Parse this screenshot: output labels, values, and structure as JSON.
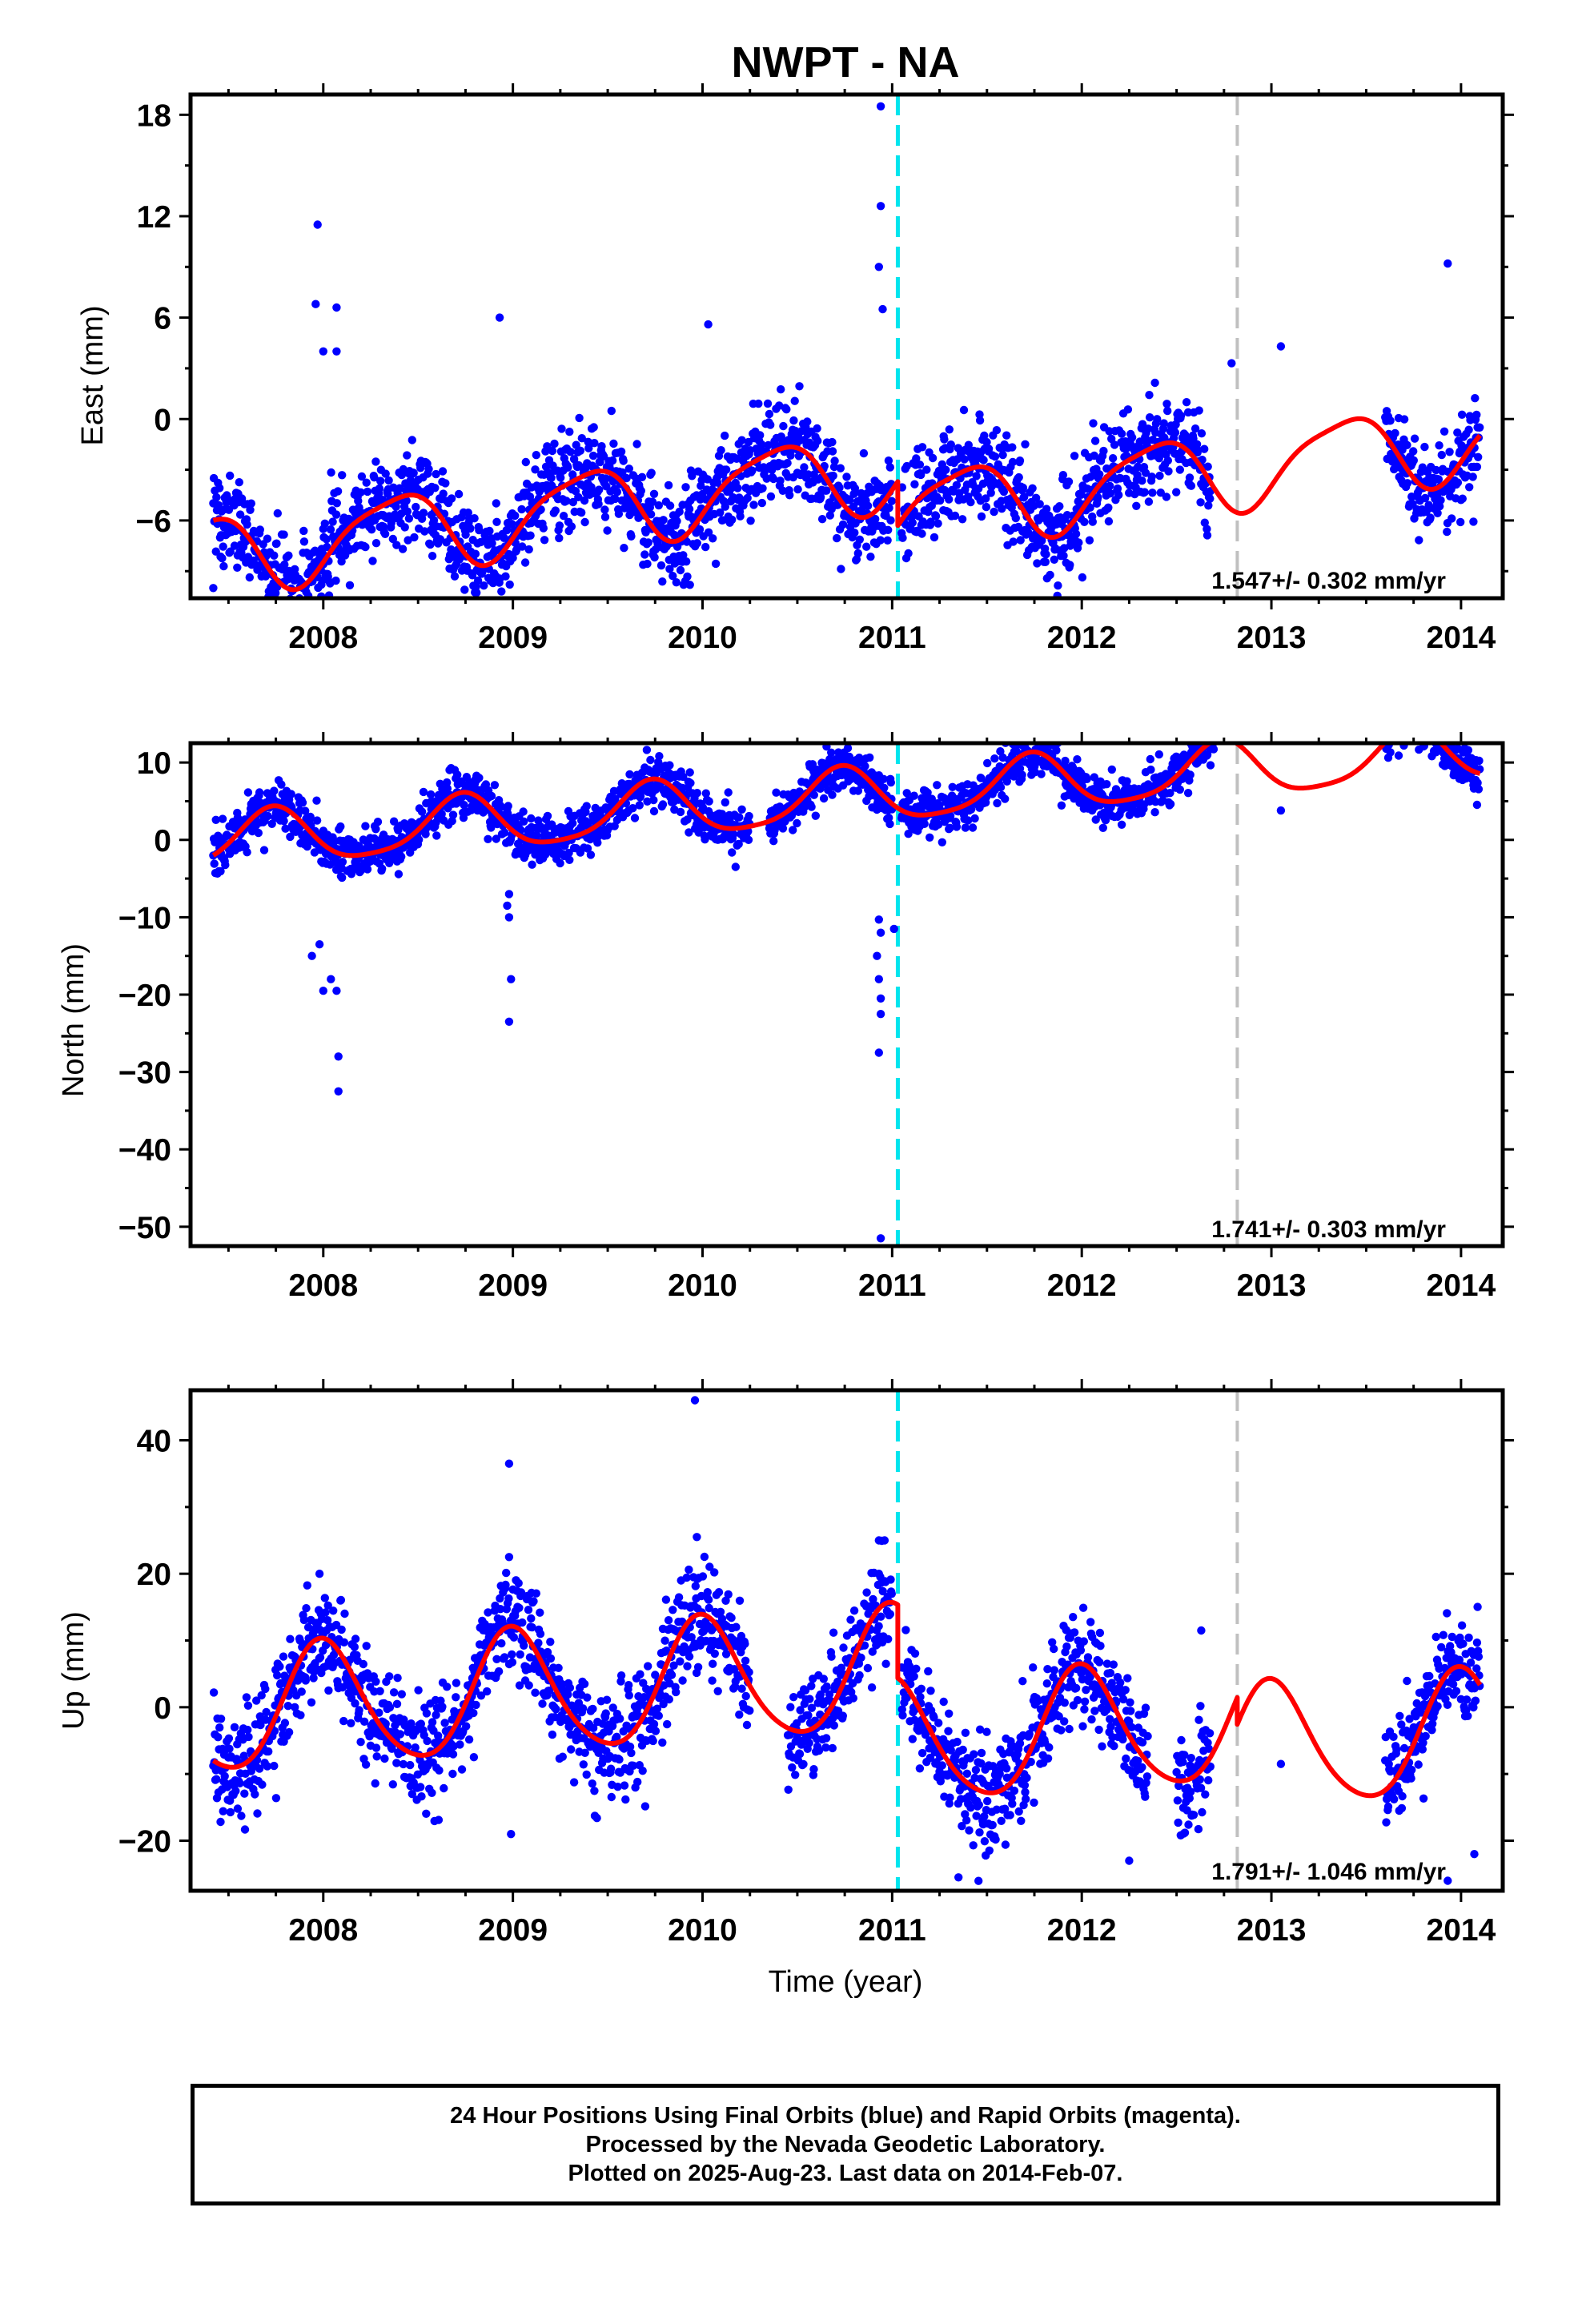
{
  "title": "NWPT - NA",
  "xlabel": "Time (year)",
  "footer": {
    "line1": "24 Hour Positions Using Final Orbits (blue) and Rapid Orbits (magenta).",
    "line2": "Processed by the Nevada Geodetic Laboratory.",
    "line3": "Plotted on 2025-Aug-23. Last data on 2014-Feb-07."
  },
  "colors": {
    "final_orbits": "#0000ff",
    "model": "#ff0000",
    "equipment_change": "#00e5ee",
    "gap_marker": "#c0c0c0"
  },
  "chart_data": [
    {
      "type": "scatter",
      "name": "east",
      "ylabel": "East (mm)",
      "rate_text": "1.547+/- 0.302 mm/yr",
      "xlim": [
        2007.3,
        2014.22
      ],
      "ylim": [
        -10.6,
        19.2
      ],
      "xticks": [
        2008,
        2009,
        2010,
        2011,
        2012,
        2013,
        2014
      ],
      "yticks": [
        -6,
        0,
        6,
        12,
        18
      ],
      "ytick_labels": [
        "−6",
        "0",
        "6",
        "12",
        "18"
      ],
      "vlines": [
        {
          "x": 2011.03,
          "kind": "equipment_change"
        },
        {
          "x": 2012.82,
          "kind": "gap_marker"
        }
      ],
      "step": {
        "x": 2011.03,
        "from": 3.6,
        "to": 1.0
      },
      "model": {
        "t0": 2007.42,
        "y0": -6.0,
        "rate": 1.547,
        "a1": 1.6,
        "b1": -1.6,
        "a2": 0.4,
        "b2": 0.3,
        "scale": 0.92,
        "noise": 1.4
      },
      "data_segments": [
        [
          2007.42,
          2010.94
        ],
        [
          2010.94,
          2011.0
        ],
        [
          2011.05,
          2012.55
        ],
        [
          2012.55,
          2012.68
        ],
        [
          2013.6,
          2014.1
        ]
      ],
      "sparse_points": [
        [
          2013.05,
          4.3
        ],
        [
          2012.79,
          3.3
        ]
      ],
      "outliers": [
        [
          2010.94,
          18.5
        ],
        [
          2010.94,
          12.6
        ],
        [
          2010.93,
          9.0
        ],
        [
          2010.95,
          6.5
        ],
        [
          2007.97,
          11.5
        ],
        [
          2007.96,
          6.8
        ],
        [
          2008.07,
          6.6
        ],
        [
          2008.0,
          4.0
        ],
        [
          2008.07,
          4.0
        ],
        [
          2008.0,
          -6.5
        ],
        [
          2008.05,
          -7.8
        ],
        [
          2007.99,
          -9.8
        ],
        [
          2008.93,
          6.0
        ],
        [
          2009.38,
          -6.1
        ],
        [
          2010.03,
          5.6
        ],
        [
          2011.27,
          -5.4
        ],
        [
          2007.42,
          -10.0
        ],
        [
          2013.93,
          9.2
        ]
      ]
    },
    {
      "type": "scatter",
      "name": "north",
      "ylabel": "North (mm)",
      "rate_text": "1.741+/- 0.303 mm/yr",
      "xlim": [
        2007.3,
        2014.22
      ],
      "ylim": [
        -52.5,
        12.5
      ],
      "xticks": [
        2008,
        2009,
        2010,
        2011,
        2012,
        2013,
        2014
      ],
      "yticks": [
        -50,
        -40,
        -30,
        -20,
        -10,
        0,
        10
      ],
      "ytick_labels": [
        "−50",
        "−40",
        "−30",
        "−20",
        "−10",
        "0",
        "10"
      ],
      "vlines": [
        {
          "x": 2011.03,
          "kind": "equipment_change"
        },
        {
          "x": 2012.82,
          "kind": "gap_marker"
        }
      ],
      "step": null,
      "model": {
        "t0": 2007.42,
        "y0": -2.0,
        "rate": 1.741,
        "a1": -3.5,
        "b1": -0.5,
        "a2": 0.0,
        "b2": -0.7,
        "scale": 1.0,
        "noise": 1.5
      },
      "data_segments": [
        [
          2007.42,
          2010.25
        ],
        [
          2010.35,
          2011.0
        ],
        [
          2011.05,
          2012.7
        ],
        [
          2013.6,
          2014.1
        ]
      ],
      "sparse_points": [
        [
          2013.05,
          3.8
        ]
      ],
      "outliers": [
        [
          2010.94,
          -51.5
        ],
        [
          2010.93,
          -27.5
        ],
        [
          2010.94,
          -22.5
        ],
        [
          2010.94,
          -20.5
        ],
        [
          2010.93,
          -18.0
        ],
        [
          2010.92,
          -15.0
        ],
        [
          2010.94,
          -12.0
        ],
        [
          2011.01,
          -11.5
        ],
        [
          2010.93,
          -10.3
        ],
        [
          2008.08,
          -28.0
        ],
        [
          2008.08,
          -32.5
        ],
        [
          2008.07,
          -19.5
        ],
        [
          2008.0,
          -19.5
        ],
        [
          2007.94,
          -15.0
        ],
        [
          2007.98,
          -13.5
        ],
        [
          2008.04,
          -18.0
        ],
        [
          2008.98,
          -23.5
        ],
        [
          2008.99,
          -18.0
        ],
        [
          2008.98,
          -10.0
        ],
        [
          2008.97,
          -8.5
        ],
        [
          2008.98,
          -7.0
        ]
      ]
    },
    {
      "type": "scatter",
      "name": "up",
      "ylabel": "Up (mm)",
      "rate_text": "1.791+/- 1.046 mm/yr",
      "xlim": [
        2007.3,
        2014.22
      ],
      "ylim": [
        -27.5,
        47.5
      ],
      "xticks": [
        2008,
        2009,
        2010,
        2011,
        2012,
        2013,
        2014
      ],
      "yticks": [
        -20,
        0,
        20,
        40
      ],
      "ytick_labels": [
        "−20",
        "0",
        "20",
        "40"
      ],
      "vlines": [
        {
          "x": 2011.03,
          "kind": "equipment_change"
        },
        {
          "x": 2012.82,
          "kind": "gap_marker"
        }
      ],
      "step": [
        {
          "x": 2011.03,
          "from": 4.5,
          "to": -6.5
        },
        {
          "x": 2012.82,
          "from": 3.0,
          "to": -1.0
        }
      ],
      "model": {
        "t0": 2007.42,
        "y0": -8.0,
        "rate": 1.791,
        "a1": 0.0,
        "b1": 9.2,
        "a2": -0.5,
        "b2": 1.0,
        "scale": 1.0,
        "noise": 4.0
      },
      "data_segments": [
        [
          2007.42,
          2010.25
        ],
        [
          2010.45,
          2011.0
        ],
        [
          2011.05,
          2012.35
        ],
        [
          2012.5,
          2012.68
        ],
        [
          2013.6,
          2014.1
        ]
      ],
      "sparse_points": [
        [
          2013.05,
          -8.5
        ]
      ],
      "outliers": [
        [
          2009.96,
          46.0
        ],
        [
          2008.98,
          36.5
        ],
        [
          2009.97,
          25.5
        ],
        [
          2008.98,
          22.5
        ],
        [
          2010.93,
          25.0
        ],
        [
          2010.96,
          25.0
        ],
        [
          2010.93,
          20.0
        ],
        [
          2007.98,
          20.0
        ],
        [
          2012.63,
          11.5
        ],
        [
          2014.07,
          -22.0
        ],
        [
          2013.93,
          -26.0
        ],
        [
          2011.35,
          -25.5
        ],
        [
          2008.99,
          -19.0
        ],
        [
          2012.25,
          -23.0
        ]
      ]
    }
  ]
}
